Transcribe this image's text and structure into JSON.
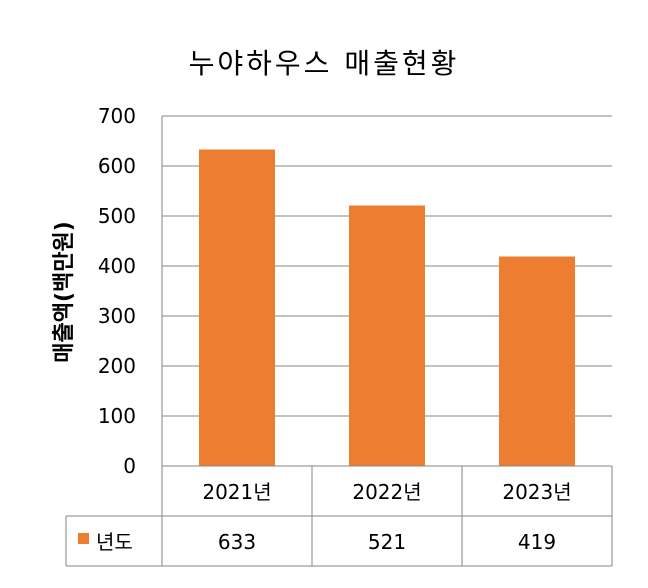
{
  "chart_data": {
    "type": "bar",
    "title": "누야하우스 매출현황",
    "ylabel": "매출액(백만원)",
    "xlabel": "",
    "categories": [
      "2021년",
      "2022년",
      "2023년"
    ],
    "series": [
      {
        "name": "년도",
        "values": [
          633,
          521,
          419
        ],
        "color": "#ED7D31"
      }
    ],
    "ylim": [
      0,
      700
    ],
    "yticks": [
      0,
      100,
      200,
      300,
      400,
      500,
      600,
      700
    ],
    "grid": true,
    "legend": "data-table-row",
    "data_table": true
  },
  "colors": {
    "bar": "#ED7D31",
    "gridline": "#868686",
    "axis": "#868686",
    "text": "#000000"
  }
}
